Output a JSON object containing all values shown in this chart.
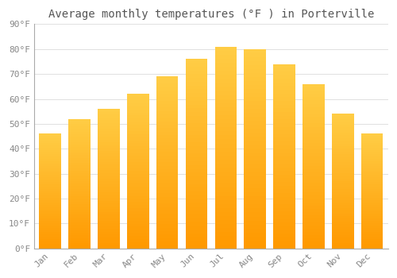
{
  "title": "Average monthly temperatures (°F ) in Porterville",
  "months": [
    "Jan",
    "Feb",
    "Mar",
    "Apr",
    "May",
    "Jun",
    "Jul",
    "Aug",
    "Sep",
    "Oct",
    "Nov",
    "Dec"
  ],
  "values": [
    46,
    52,
    56,
    62,
    69,
    76,
    81,
    80,
    74,
    66,
    54,
    46
  ],
  "bar_color_top": "#FFB020",
  "bar_color_bottom": "#FFA500",
  "background_color": "#FFFFFF",
  "grid_color": "#E0E0E0",
  "text_color": "#888888",
  "title_color": "#555555",
  "ylim": [
    0,
    90
  ],
  "yticks": [
    0,
    10,
    20,
    30,
    40,
    50,
    60,
    70,
    80,
    90
  ],
  "ytick_labels": [
    "0°F",
    "10°F",
    "20°F",
    "30°F",
    "40°F",
    "50°F",
    "60°F",
    "70°F",
    "80°F",
    "90°F"
  ],
  "title_fontsize": 10,
  "tick_fontsize": 8,
  "bar_width": 0.75,
  "gradient_top": "#FFCC44",
  "gradient_bottom": "#FF9900",
  "n_gradient_steps": 50
}
